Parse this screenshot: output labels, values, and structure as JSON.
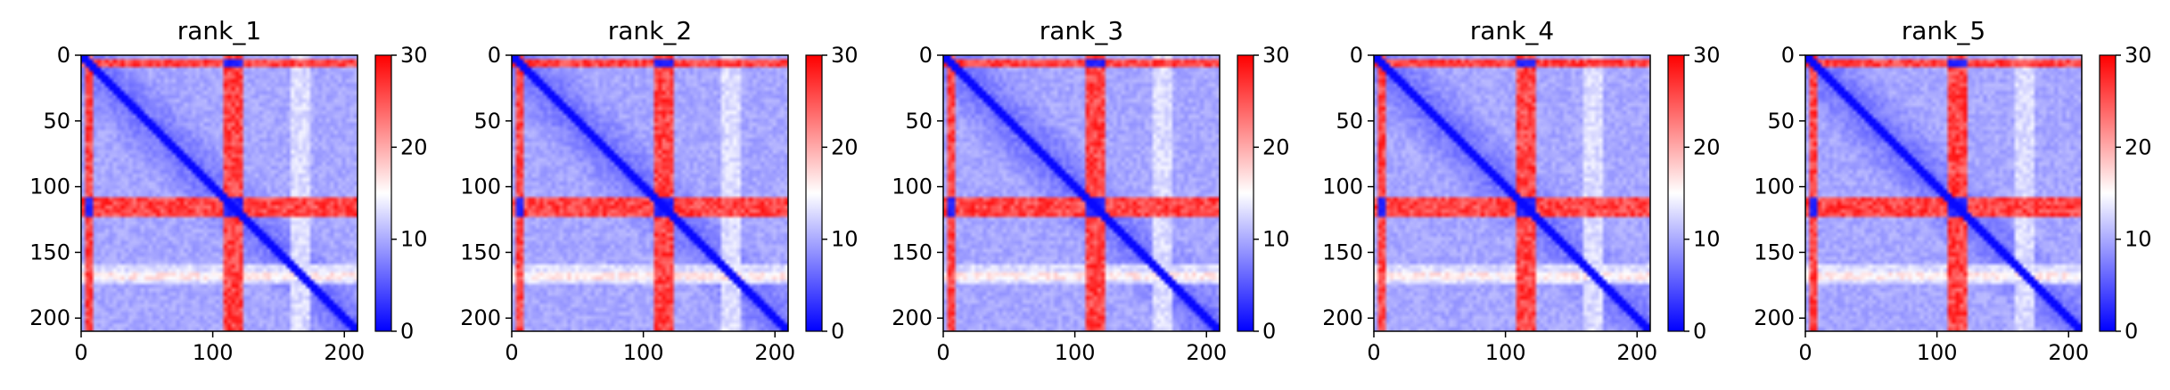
{
  "chart_data": [
    {
      "type": "heatmap",
      "title": "rank_1",
      "xlim": [
        0,
        210
      ],
      "ylim": [
        210,
        0
      ],
      "xticks": [
        0,
        100,
        200
      ],
      "yticks": [
        0,
        50,
        100,
        150,
        200
      ],
      "colorbar": {
        "min": 0,
        "max": 30,
        "ticks": [
          0,
          10,
          20,
          30
        ],
        "colormap": "bwr"
      },
      "bands": {
        "red": [
          [
            2,
            10
          ],
          [
            108,
            122
          ]
        ],
        "white": [
          [
            112,
            122
          ],
          [
            160,
            175
          ]
        ],
        "light_rows": [
          [
            166,
            172
          ]
        ]
      },
      "grid": false
    },
    {
      "type": "heatmap",
      "title": "rank_2",
      "xlim": [
        0,
        210
      ],
      "ylim": [
        210,
        0
      ],
      "xticks": [
        0,
        100,
        200
      ],
      "yticks": [
        0,
        50,
        100,
        150,
        200
      ],
      "colorbar": {
        "min": 0,
        "max": 30,
        "ticks": [
          0,
          10,
          20,
          30
        ],
        "colormap": "bwr"
      },
      "bands": {
        "red": [
          [
            2,
            10
          ],
          [
            108,
            122
          ]
        ],
        "white": [
          [
            112,
            122
          ],
          [
            160,
            175
          ]
        ],
        "light_rows": [
          [
            166,
            172
          ]
        ]
      },
      "grid": false
    },
    {
      "type": "heatmap",
      "title": "rank_3",
      "xlim": [
        0,
        210
      ],
      "ylim": [
        210,
        0
      ],
      "xticks": [
        0,
        100,
        200
      ],
      "yticks": [
        0,
        50,
        100,
        150,
        200
      ],
      "colorbar": {
        "min": 0,
        "max": 30,
        "ticks": [
          0,
          10,
          20,
          30
        ],
        "colormap": "bwr"
      },
      "bands": {
        "red": [
          [
            2,
            10
          ],
          [
            108,
            122
          ]
        ],
        "white": [
          [
            112,
            122
          ],
          [
            160,
            175
          ]
        ],
        "light_rows": [
          [
            166,
            172
          ]
        ]
      },
      "grid": false
    },
    {
      "type": "heatmap",
      "title": "rank_4",
      "xlim": [
        0,
        210
      ],
      "ylim": [
        210,
        0
      ],
      "xticks": [
        0,
        100,
        200
      ],
      "yticks": [
        0,
        50,
        100,
        150,
        200
      ],
      "colorbar": {
        "min": 0,
        "max": 30,
        "ticks": [
          0,
          10,
          20,
          30
        ],
        "colormap": "bwr"
      },
      "bands": {
        "red": [
          [
            2,
            10
          ],
          [
            108,
            122
          ]
        ],
        "white": [
          [
            112,
            122
          ],
          [
            160,
            175
          ]
        ],
        "light_rows": [
          [
            166,
            172
          ]
        ]
      },
      "grid": false
    },
    {
      "type": "heatmap",
      "title": "rank_5",
      "xlim": [
        0,
        210
      ],
      "ylim": [
        210,
        0
      ],
      "xticks": [
        0,
        100,
        200
      ],
      "yticks": [
        0,
        50,
        100,
        150,
        200
      ],
      "colorbar": {
        "min": 0,
        "max": 30,
        "ticks": [
          0,
          10,
          20,
          30
        ],
        "colormap": "bwr"
      },
      "bands": {
        "red": [
          [
            2,
            10
          ],
          [
            108,
            122
          ]
        ],
        "white": [
          [
            112,
            122
          ],
          [
            160,
            175
          ]
        ],
        "light_rows": [
          [
            166,
            172
          ]
        ]
      },
      "grid": false
    }
  ]
}
